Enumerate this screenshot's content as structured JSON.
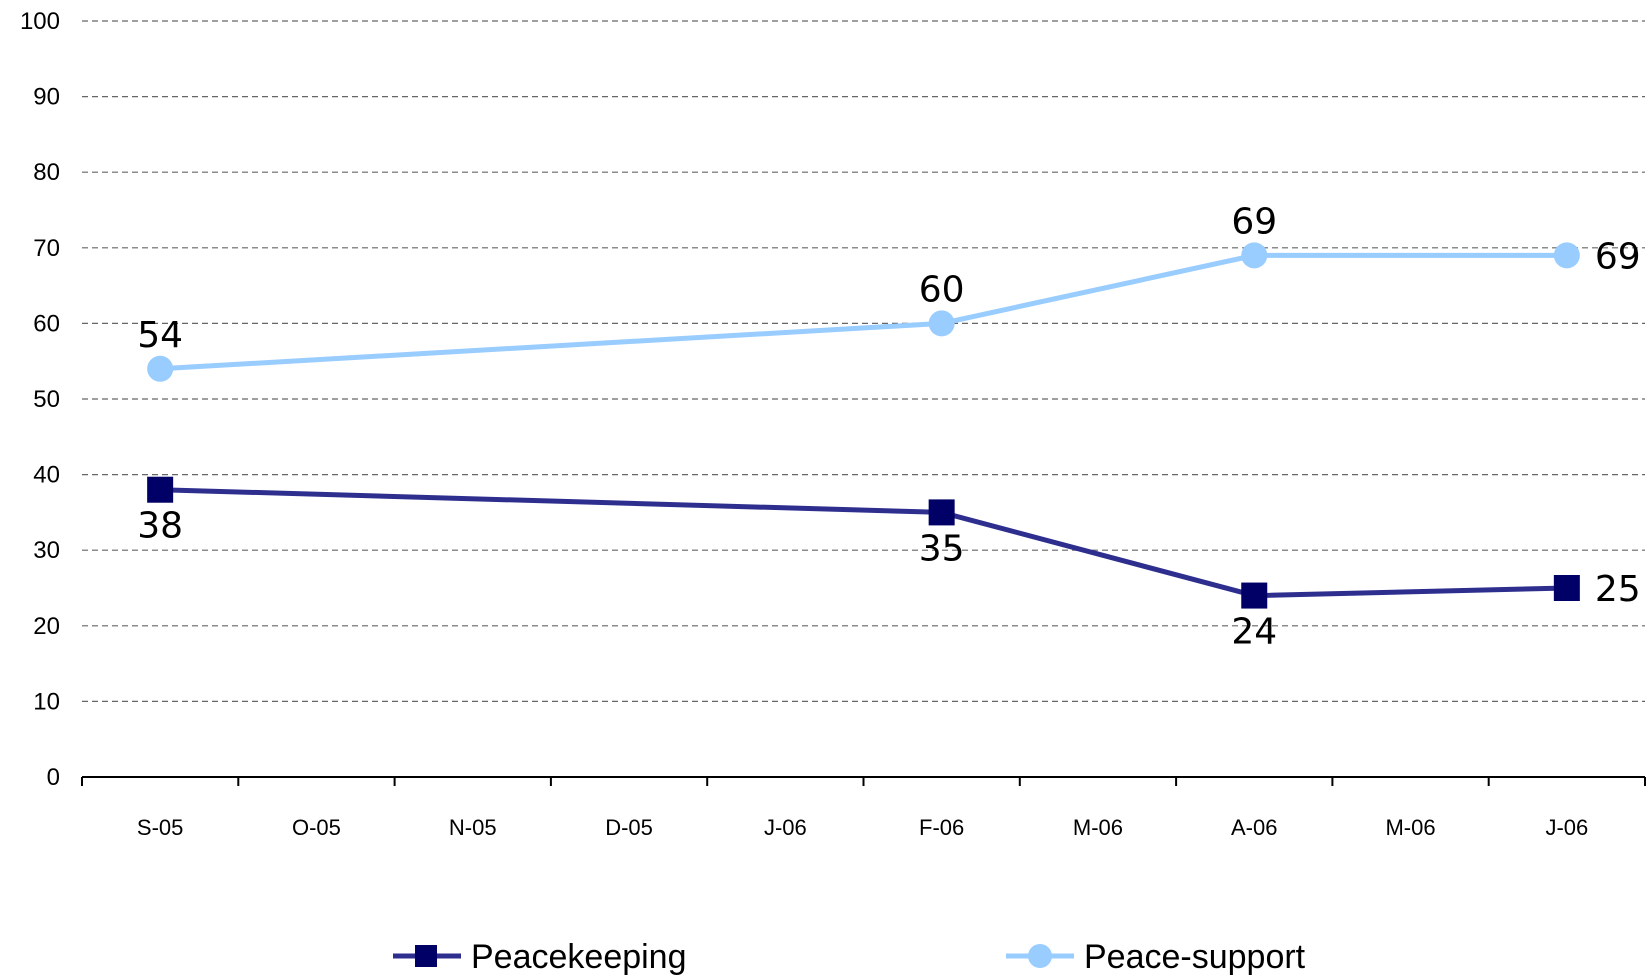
{
  "chart_data": {
    "type": "line",
    "categories": [
      "S-05",
      "O-05",
      "N-05",
      "D-05",
      "J-06",
      "F-06",
      "M-06",
      "A-06",
      "M-06",
      "J-06"
    ],
    "series": [
      {
        "name": "Peacekeeping",
        "color": "#2e2e8f",
        "marker_color": "#000066",
        "marker": "square",
        "values": [
          38,
          null,
          null,
          null,
          null,
          35,
          null,
          24,
          null,
          25
        ],
        "labels": [
          "38",
          null,
          null,
          null,
          null,
          "35",
          null,
          "24",
          null,
          "25"
        ],
        "label_positions": [
          "below",
          null,
          null,
          null,
          null,
          "below",
          null,
          "below",
          null,
          "right"
        ]
      },
      {
        "name": "Peace-support",
        "color": "#99ccff",
        "marker_color": "#99ccff",
        "marker": "circle",
        "values": [
          54,
          null,
          null,
          null,
          null,
          60,
          null,
          69,
          null,
          69
        ],
        "labels": [
          "54",
          null,
          null,
          null,
          null,
          "60",
          null,
          "69",
          null,
          "69"
        ],
        "label_positions": [
          "above",
          null,
          null,
          null,
          null,
          "above",
          null,
          "above",
          null,
          "right"
        ]
      }
    ],
    "ylim": [
      0,
      100
    ],
    "yticks": [
      "0",
      "10",
      "20",
      "30",
      "40",
      "50",
      "60",
      "70",
      "80",
      "90",
      "100"
    ],
    "grid": true,
    "legend_position": "bottom",
    "title": "",
    "xlabel": "",
    "ylabel": ""
  }
}
